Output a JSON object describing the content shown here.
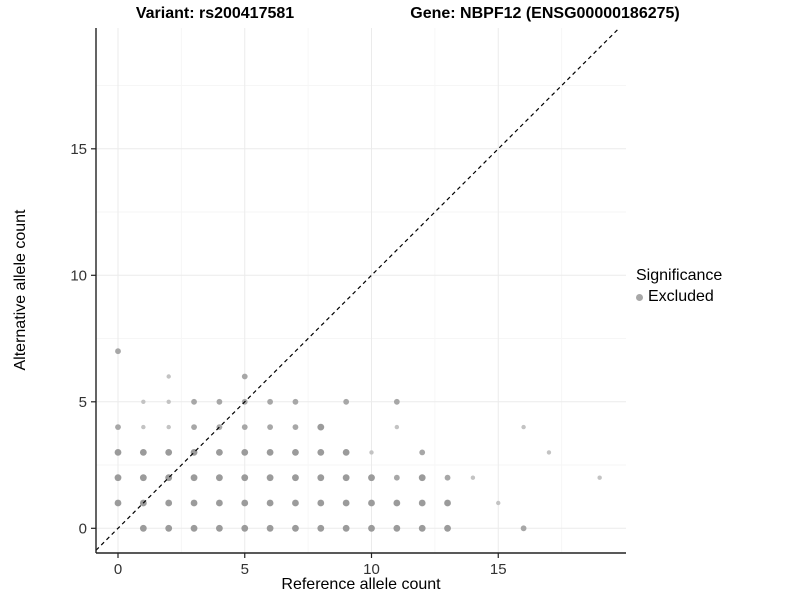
{
  "titles": {
    "variant": "Variant: rs200417581",
    "gene": "Gene: NBPF12 (ENSG00000186275)"
  },
  "chart_data": {
    "type": "scatter",
    "xlabel": "Reference allele count",
    "ylabel": "Alternative allele count",
    "x_ticks": [
      0,
      5,
      10,
      15
    ],
    "y_ticks": [
      0,
      5,
      10,
      15
    ],
    "x_minor": [
      2.5,
      7.5,
      12.5,
      17.5
    ],
    "y_minor": [
      2.5,
      7.5,
      12.5,
      17.5
    ],
    "xlim": [
      -0.87,
      20.0
    ],
    "ylim": [
      -1.0,
      19.8
    ],
    "grid": "on",
    "identity_line": {
      "style": "dashed",
      "from": [
        -1,
        -1
      ],
      "to": [
        20,
        20
      ]
    },
    "legend": {
      "position": "right",
      "title": "Significance",
      "items": [
        {
          "label": "Excluded",
          "color": "#a8a8a8"
        }
      ]
    },
    "points": [
      [
        1,
        0,
        3
      ],
      [
        2,
        0,
        3
      ],
      [
        3,
        0,
        3
      ],
      [
        4,
        0,
        3
      ],
      [
        5,
        0,
        3
      ],
      [
        6,
        0,
        3
      ],
      [
        7,
        0,
        3
      ],
      [
        8,
        0,
        3
      ],
      [
        9,
        0,
        3
      ],
      [
        10,
        0,
        3
      ],
      [
        11,
        0,
        3
      ],
      [
        12,
        0,
        3
      ],
      [
        13,
        0,
        3
      ],
      [
        16,
        0,
        2
      ],
      [
        0,
        1,
        3
      ],
      [
        1,
        1,
        3
      ],
      [
        2,
        1,
        3
      ],
      [
        3,
        1,
        3
      ],
      [
        4,
        1,
        3
      ],
      [
        5,
        1,
        3
      ],
      [
        6,
        1,
        3
      ],
      [
        7,
        1,
        3
      ],
      [
        8,
        1,
        3
      ],
      [
        9,
        1,
        3
      ],
      [
        10,
        1,
        3
      ],
      [
        11,
        1,
        3
      ],
      [
        12,
        1,
        3
      ],
      [
        13,
        1,
        3
      ],
      [
        15,
        1,
        1
      ],
      [
        0,
        2,
        3
      ],
      [
        1,
        2,
        3
      ],
      [
        2,
        2,
        3
      ],
      [
        3,
        2,
        3
      ],
      [
        4,
        2,
        3
      ],
      [
        5,
        2,
        3
      ],
      [
        6,
        2,
        3
      ],
      [
        7,
        2,
        3
      ],
      [
        8,
        2,
        3
      ],
      [
        9,
        2,
        3
      ],
      [
        10,
        2,
        3
      ],
      [
        11,
        2,
        2
      ],
      [
        12,
        2,
        3
      ],
      [
        13,
        2,
        2
      ],
      [
        14,
        2,
        1
      ],
      [
        19,
        2,
        1
      ],
      [
        0,
        3,
        3
      ],
      [
        1,
        3,
        3
      ],
      [
        2,
        3,
        3
      ],
      [
        3,
        3,
        3
      ],
      [
        4,
        3,
        3
      ],
      [
        5,
        3,
        3
      ],
      [
        6,
        3,
        3
      ],
      [
        7,
        3,
        3
      ],
      [
        8,
        3,
        3
      ],
      [
        9,
        3,
        3
      ],
      [
        10,
        3,
        1
      ],
      [
        12,
        3,
        2
      ],
      [
        17,
        3,
        1
      ],
      [
        0,
        4,
        2
      ],
      [
        1,
        4,
        1
      ],
      [
        2,
        4,
        1
      ],
      [
        3,
        4,
        2
      ],
      [
        4,
        4,
        2
      ],
      [
        5,
        4,
        2
      ],
      [
        6,
        4,
        2
      ],
      [
        7,
        4,
        2
      ],
      [
        8,
        4,
        3
      ],
      [
        11,
        4,
        1
      ],
      [
        16,
        4,
        1
      ],
      [
        1,
        5,
        1
      ],
      [
        2,
        5,
        1
      ],
      [
        3,
        5,
        2
      ],
      [
        4,
        5,
        2
      ],
      [
        5,
        5,
        2
      ],
      [
        6,
        5,
        2
      ],
      [
        7,
        5,
        2
      ],
      [
        9,
        5,
        2
      ],
      [
        11,
        5,
        2
      ],
      [
        2,
        6,
        1
      ],
      [
        5,
        6,
        2
      ],
      [
        0,
        7,
        2
      ]
    ],
    "point_size_colors": {
      "1": "#c3c3c3",
      "2": "#a7a7a7",
      "3": "#9b9b9b"
    },
    "point_size_radius": {
      "1": 2.2,
      "2": 2.9,
      "3": 3.4
    }
  },
  "colors": {
    "axis": "#222222",
    "tick_label": "#333333",
    "grid_major": "#ebebeb",
    "grid_minor": "#f6f6f6",
    "identity_line": "#000000",
    "background": "#ffffff"
  }
}
